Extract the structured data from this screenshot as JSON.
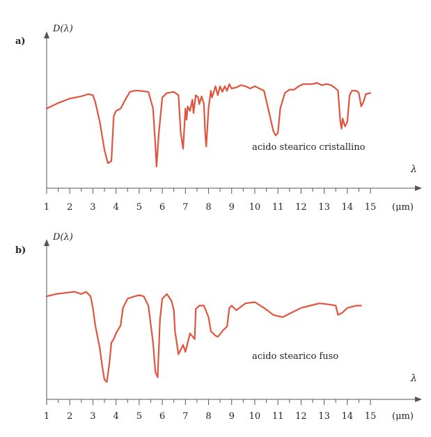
{
  "chart_data": [
    {
      "panel": "a)",
      "type": "line",
      "ylabel": "D(λ)",
      "xlabel": "λ",
      "unit": "(μm)",
      "annotation": "acido stearico cristallino",
      "xlim": [
        1,
        15.8
      ],
      "ylim": [
        0,
        1
      ],
      "ticks": [
        1,
        2,
        3,
        4,
        5,
        6,
        7,
        8,
        9,
        10,
        11,
        12,
        13,
        14,
        15
      ],
      "color": "#e0533d",
      "series": [
        {
          "x": [
            1.0,
            1.5,
            2.0,
            2.5,
            2.8,
            3.0,
            3.1,
            3.3,
            3.5,
            3.65,
            3.8,
            3.9,
            4.0,
            4.2,
            4.4,
            4.6,
            4.8,
            5.0,
            5.4,
            5.6,
            5.7,
            5.75,
            5.85,
            6.0,
            6.2,
            6.5,
            6.7,
            6.8,
            6.9,
            7.0,
            7.05,
            7.1,
            7.2,
            7.3,
            7.35,
            7.45,
            7.55,
            7.6,
            7.7,
            7.8,
            7.85,
            7.9,
            8.0,
            8.1,
            8.15,
            8.3,
            8.4,
            8.5,
            8.6,
            8.7,
            8.8,
            8.9,
            9.0,
            9.2,
            9.4,
            9.6,
            9.8,
            10.0,
            10.2,
            10.4,
            10.6,
            10.8,
            10.9,
            11.0,
            11.1,
            11.3,
            11.5,
            11.7,
            11.9,
            12.1,
            12.5,
            12.7,
            12.9,
            13.1,
            13.3,
            13.5,
            13.6,
            13.7,
            13.75,
            13.8,
            13.9,
            14.0,
            14.1,
            14.2,
            14.4,
            14.5,
            14.6,
            14.7,
            14.8,
            15.0
          ],
          "y": [
            0.62,
            0.67,
            0.71,
            0.73,
            0.75,
            0.74,
            0.68,
            0.5,
            0.25,
            0.13,
            0.15,
            0.55,
            0.6,
            0.62,
            0.7,
            0.77,
            0.78,
            0.78,
            0.77,
            0.62,
            0.3,
            0.1,
            0.4,
            0.72,
            0.76,
            0.77,
            0.74,
            0.4,
            0.26,
            0.62,
            0.52,
            0.64,
            0.6,
            0.7,
            0.58,
            0.74,
            0.72,
            0.66,
            0.73,
            0.66,
            0.42,
            0.28,
            0.62,
            0.78,
            0.72,
            0.82,
            0.74,
            0.82,
            0.77,
            0.82,
            0.78,
            0.84,
            0.8,
            0.81,
            0.83,
            0.82,
            0.8,
            0.82,
            0.8,
            0.78,
            0.6,
            0.42,
            0.38,
            0.4,
            0.62,
            0.76,
            0.79,
            0.79,
            0.82,
            0.84,
            0.84,
            0.85,
            0.83,
            0.84,
            0.83,
            0.8,
            0.78,
            0.5,
            0.44,
            0.53,
            0.46,
            0.5,
            0.74,
            0.78,
            0.78,
            0.76,
            0.64,
            0.68,
            0.75,
            0.76
          ]
        }
      ]
    },
    {
      "panel": "b)",
      "type": "line",
      "ylabel": "D(λ)",
      "xlabel": "λ",
      "unit": "(μm)",
      "annotation": "acido stearico fuso",
      "xlim": [
        1,
        15.8
      ],
      "ylim": [
        0,
        1
      ],
      "ticks": [
        1,
        2,
        3,
        4,
        5,
        6,
        7,
        8,
        9,
        10,
        11,
        12,
        13,
        14,
        15
      ],
      "color": "#e0533d",
      "series": [
        {
          "x": [
            1.0,
            1.4,
            1.8,
            2.2,
            2.5,
            2.7,
            2.9,
            3.0,
            3.1,
            3.2,
            3.3,
            3.4,
            3.5,
            3.6,
            3.7,
            3.8,
            3.9,
            4.0,
            4.2,
            4.3,
            4.5,
            4.8,
            5.0,
            5.2,
            5.4,
            5.6,
            5.7,
            5.8,
            5.9,
            6.0,
            6.2,
            6.4,
            6.5,
            6.55,
            6.7,
            6.9,
            7.0,
            7.2,
            7.4,
            7.45,
            7.6,
            7.8,
            8.0,
            8.1,
            8.2,
            8.3,
            8.4,
            8.6,
            8.8,
            8.9,
            9.0,
            9.2,
            9.6,
            10.0,
            10.4,
            10.8,
            11.2,
            11.6,
            12.0,
            12.4,
            12.8,
            13.2,
            13.5,
            13.6,
            13.8,
            14.0,
            14.2,
            14.4,
            14.6
          ],
          "y": [
            0.8,
            0.82,
            0.83,
            0.84,
            0.82,
            0.84,
            0.8,
            0.7,
            0.55,
            0.45,
            0.35,
            0.2,
            0.08,
            0.06,
            0.2,
            0.4,
            0.43,
            0.48,
            0.55,
            0.7,
            0.78,
            0.8,
            0.81,
            0.8,
            0.72,
            0.4,
            0.15,
            0.1,
            0.6,
            0.78,
            0.82,
            0.76,
            0.68,
            0.5,
            0.3,
            0.38,
            0.32,
            0.48,
            0.43,
            0.69,
            0.72,
            0.72,
            0.62,
            0.5,
            0.48,
            0.46,
            0.45,
            0.5,
            0.54,
            0.7,
            0.72,
            0.68,
            0.74,
            0.75,
            0.7,
            0.64,
            0.62,
            0.66,
            0.7,
            0.72,
            0.74,
            0.73,
            0.72,
            0.64,
            0.66,
            0.7,
            0.71,
            0.72,
            0.72
          ]
        }
      ]
    }
  ]
}
